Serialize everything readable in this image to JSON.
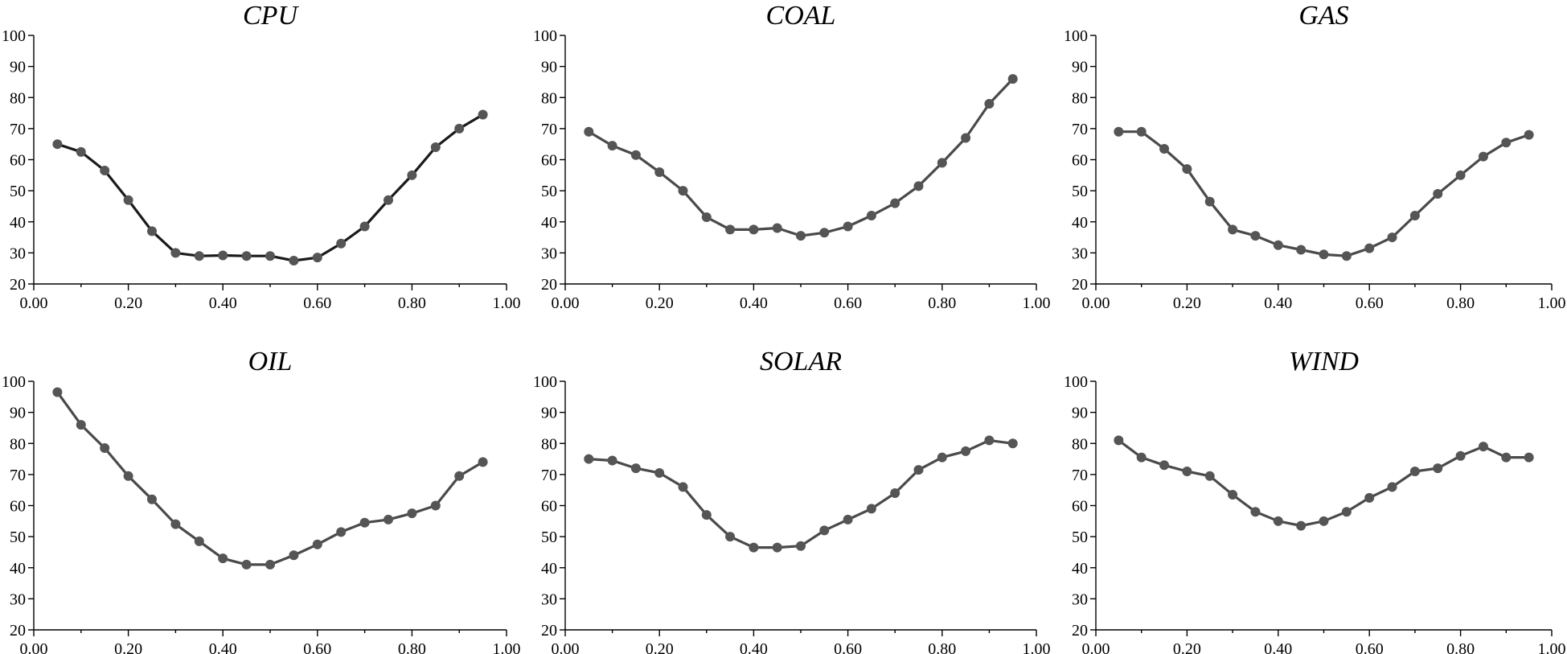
{
  "chart_data": [
    {
      "type": "line",
      "title": "CPU",
      "xlim": [
        0,
        1
      ],
      "ylim": [
        20,
        100
      ],
      "xticks": [
        "0.00",
        "0.20",
        "0.40",
        "0.60",
        "0.80",
        "1.00"
      ],
      "yticks": [
        "20",
        "30",
        "40",
        "50",
        "60",
        "70",
        "80",
        "90",
        "100"
      ],
      "grid": false,
      "line_color": "#1a1a1a",
      "marker_color": "#555555",
      "x": [
        0.05,
        0.1,
        0.15,
        0.2,
        0.25,
        0.3,
        0.35,
        0.4,
        0.45,
        0.5,
        0.55,
        0.6,
        0.65,
        0.7,
        0.75,
        0.8,
        0.85,
        0.9,
        0.95
      ],
      "y": [
        65,
        62.5,
        56.5,
        47,
        37,
        30,
        29,
        29.2,
        29,
        29,
        27.5,
        28.5,
        33,
        38.5,
        47,
        55,
        64,
        70,
        74.5
      ]
    },
    {
      "type": "line",
      "title": "COAL",
      "xlim": [
        0,
        1
      ],
      "ylim": [
        20,
        100
      ],
      "xticks": [
        "0.00",
        "0.20",
        "0.40",
        "0.60",
        "0.80",
        "1.00"
      ],
      "yticks": [
        "20",
        "30",
        "40",
        "50",
        "60",
        "70",
        "80",
        "90",
        "100"
      ],
      "grid": false,
      "line_color": "#4a4a4a",
      "marker_color": "#555555",
      "x": [
        0.05,
        0.1,
        0.15,
        0.2,
        0.25,
        0.3,
        0.35,
        0.4,
        0.45,
        0.5,
        0.55,
        0.6,
        0.65,
        0.7,
        0.75,
        0.8,
        0.85,
        0.9,
        0.95
      ],
      "y": [
        69,
        64.5,
        61.5,
        56,
        50,
        41.5,
        37.5,
        37.5,
        38,
        35.5,
        36.5,
        38.5,
        42,
        46,
        51.5,
        59,
        67,
        78,
        86
      ]
    },
    {
      "type": "line",
      "title": "GAS",
      "xlim": [
        0,
        1
      ],
      "ylim": [
        20,
        100
      ],
      "xticks": [
        "0.00",
        "0.20",
        "0.40",
        "0.60",
        "0.80",
        "1.00"
      ],
      "yticks": [
        "20",
        "30",
        "40",
        "50",
        "60",
        "70",
        "80",
        "90",
        "100"
      ],
      "grid": false,
      "line_color": "#4a4a4a",
      "marker_color": "#555555",
      "x": [
        0.05,
        0.1,
        0.15,
        0.2,
        0.25,
        0.3,
        0.35,
        0.4,
        0.45,
        0.5,
        0.55,
        0.6,
        0.65,
        0.7,
        0.75,
        0.8,
        0.85,
        0.9,
        0.95
      ],
      "y": [
        69,
        69,
        63.5,
        57,
        46.5,
        37.5,
        35.5,
        32.5,
        31,
        29.5,
        29,
        31.5,
        35,
        42,
        49,
        55,
        61,
        65.5,
        68
      ]
    },
    {
      "type": "line",
      "title": "OIL",
      "xlim": [
        0,
        1
      ],
      "ylim": [
        20,
        100
      ],
      "xticks": [
        "0.00",
        "0.20",
        "0.40",
        "0.60",
        "0.80",
        "1.00"
      ],
      "yticks": [
        "20",
        "30",
        "40",
        "50",
        "60",
        "70",
        "80",
        "90",
        "100"
      ],
      "grid": false,
      "line_color": "#4a4a4a",
      "marker_color": "#555555",
      "x": [
        0.05,
        0.1,
        0.15,
        0.2,
        0.25,
        0.3,
        0.35,
        0.4,
        0.45,
        0.5,
        0.55,
        0.6,
        0.65,
        0.7,
        0.75,
        0.8,
        0.85,
        0.9,
        0.95
      ],
      "y": [
        96.5,
        86,
        78.5,
        69.5,
        62,
        54,
        48.5,
        43,
        41,
        41,
        44,
        47.5,
        51.5,
        54.5,
        55.5,
        57.5,
        60,
        69.5,
        74
      ]
    },
    {
      "type": "line",
      "title": "SOLAR",
      "xlim": [
        0,
        1
      ],
      "ylim": [
        20,
        100
      ],
      "xticks": [
        "0.00",
        "0.20",
        "0.40",
        "0.60",
        "0.80",
        "1.00"
      ],
      "yticks": [
        "20",
        "30",
        "40",
        "50",
        "60",
        "70",
        "80",
        "90",
        "100"
      ],
      "grid": false,
      "line_color": "#4a4a4a",
      "marker_color": "#555555",
      "x": [
        0.05,
        0.1,
        0.15,
        0.2,
        0.25,
        0.3,
        0.35,
        0.4,
        0.45,
        0.5,
        0.55,
        0.6,
        0.65,
        0.7,
        0.75,
        0.8,
        0.85,
        0.9,
        0.95
      ],
      "y": [
        75,
        74.5,
        72,
        70.5,
        66,
        57,
        50,
        46.5,
        46.5,
        47,
        52,
        55.5,
        59,
        64,
        71.5,
        75.5,
        77.5,
        81,
        80
      ]
    },
    {
      "type": "line",
      "title": "WIND",
      "xlim": [
        0,
        1
      ],
      "ylim": [
        20,
        100
      ],
      "xticks": [
        "0.00",
        "0.20",
        "0.40",
        "0.60",
        "0.80",
        "1.00"
      ],
      "yticks": [
        "20",
        "30",
        "40",
        "50",
        "60",
        "70",
        "80",
        "90",
        "100"
      ],
      "grid": false,
      "line_color": "#4a4a4a",
      "marker_color": "#555555",
      "x": [
        0.05,
        0.1,
        0.15,
        0.2,
        0.25,
        0.3,
        0.35,
        0.4,
        0.45,
        0.5,
        0.55,
        0.6,
        0.65,
        0.7,
        0.75,
        0.8,
        0.85,
        0.9,
        0.95
      ],
      "y": [
        81,
        75.5,
        73,
        71,
        69.5,
        63.5,
        58,
        55,
        53.5,
        55,
        58,
        62.5,
        66,
        71,
        72,
        76,
        79,
        75.5,
        75.5
      ]
    }
  ]
}
